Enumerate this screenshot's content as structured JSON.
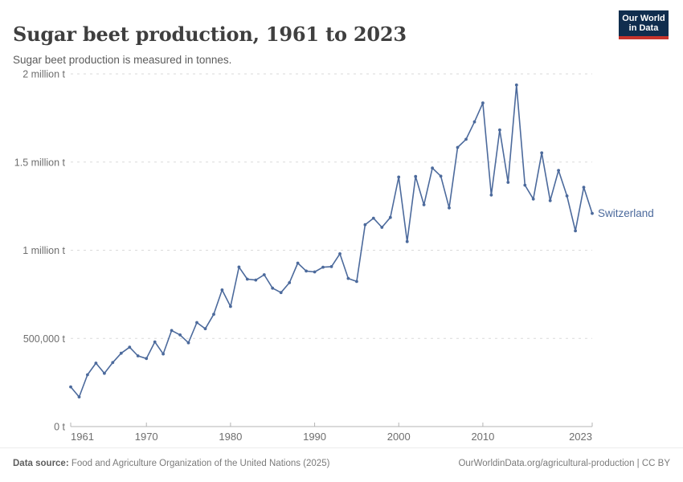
{
  "header": {
    "title": "Sugar beet production, 1961 to 2023",
    "subtitle": "Sugar beet production is measured in tonnes.",
    "logo": {
      "line1": "Our World",
      "line2": "in Data",
      "bg_color": "#102D4E",
      "accent_color": "#C7342C"
    }
  },
  "chart_data": {
    "type": "line",
    "title": "Sugar beet production, 1961 to 2023",
    "unit": "tonnes",
    "entity_label": "Switzerland",
    "line_color": "#4C6A9C",
    "grid": "horizontal-dashed",
    "xlim": [
      1961,
      2023
    ],
    "ylim": [
      0,
      2000000
    ],
    "xticks": [
      {
        "year": 1961,
        "label": "1961",
        "anchor": "start"
      },
      {
        "year": 1970,
        "label": "1970",
        "anchor": "middle"
      },
      {
        "year": 1980,
        "label": "1980",
        "anchor": "middle"
      },
      {
        "year": 1990,
        "label": "1990",
        "anchor": "middle"
      },
      {
        "year": 2000,
        "label": "2000",
        "anchor": "middle"
      },
      {
        "year": 2010,
        "label": "2010",
        "anchor": "middle"
      },
      {
        "year": 2023,
        "label": "2023",
        "anchor": "end"
      }
    ],
    "yticks": [
      {
        "value": 0,
        "label": "0 t"
      },
      {
        "value": 500000,
        "label": "500,000 t"
      },
      {
        "value": 1000000,
        "label": "1 million t"
      },
      {
        "value": 1500000,
        "label": "1.5 million t"
      },
      {
        "value": 2000000,
        "label": "2 million t"
      }
    ],
    "series": [
      {
        "name": "Switzerland",
        "years": [
          1961,
          1962,
          1963,
          1964,
          1965,
          1966,
          1967,
          1968,
          1969,
          1970,
          1971,
          1972,
          1973,
          1974,
          1975,
          1976,
          1977,
          1978,
          1979,
          1980,
          1981,
          1982,
          1983,
          1984,
          1985,
          1986,
          1987,
          1988,
          1989,
          1990,
          1991,
          1992,
          1993,
          1994,
          1995,
          1996,
          1997,
          1998,
          1999,
          2000,
          2001,
          2002,
          2003,
          2004,
          2005,
          2006,
          2007,
          2008,
          2009,
          2010,
          2011,
          2012,
          2013,
          2014,
          2015,
          2016,
          2017,
          2018,
          2019,
          2020,
          2021,
          2022,
          2023
        ],
        "values": [
          225000,
          168000,
          294000,
          360000,
          302000,
          363000,
          416000,
          450000,
          401000,
          386000,
          480000,
          412000,
          545000,
          520000,
          475000,
          590000,
          555000,
          637000,
          775000,
          681000,
          905000,
          836000,
          831000,
          861000,
          785000,
          760000,
          816000,
          927000,
          882000,
          877000,
          904000,
          907000,
          980000,
          840000,
          823000,
          1145000,
          1182000,
          1130000,
          1186000,
          1415000,
          1049000,
          1418000,
          1258000,
          1466000,
          1420000,
          1240000,
          1583000,
          1629000,
          1728000,
          1835000,
          1313000,
          1682000,
          1385000,
          1937000,
          1369000,
          1290000,
          1552000,
          1281000,
          1453000,
          1308000,
          1110000,
          1357000,
          1209000
        ]
      }
    ]
  },
  "footer": {
    "datasource_label": "Data source:",
    "datasource_text": " Food and Agriculture Organization of the United Nations (2025)",
    "link_text": "OurWorldinData.org/agricultural-production | CC BY"
  }
}
